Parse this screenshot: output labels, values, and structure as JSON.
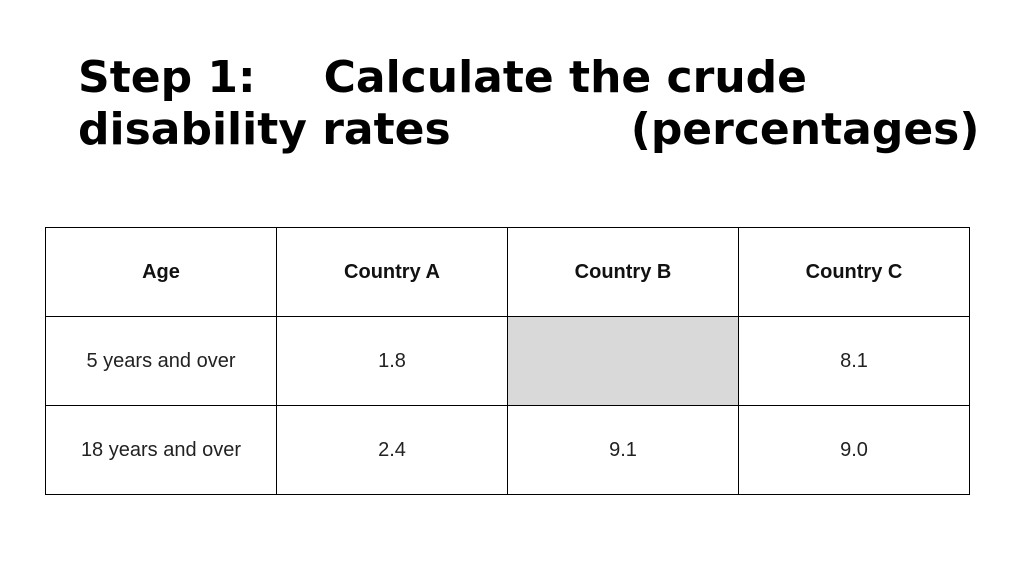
{
  "title": {
    "step": "Step 1:",
    "main": "Calculate the crude",
    "line2_left": "disability rates",
    "line2_right": "(percentages)"
  },
  "table": {
    "headers": [
      "Age",
      "Country A",
      "Country B",
      "Country C"
    ],
    "rows": [
      {
        "age": "5 years and over",
        "a": "1.8",
        "b": "",
        "c": "8.1"
      },
      {
        "age": "18 years and over",
        "a": "2.4",
        "b": "9.1",
        "c": "9.0"
      }
    ],
    "empty_cell_color": "#d9d9d9"
  }
}
